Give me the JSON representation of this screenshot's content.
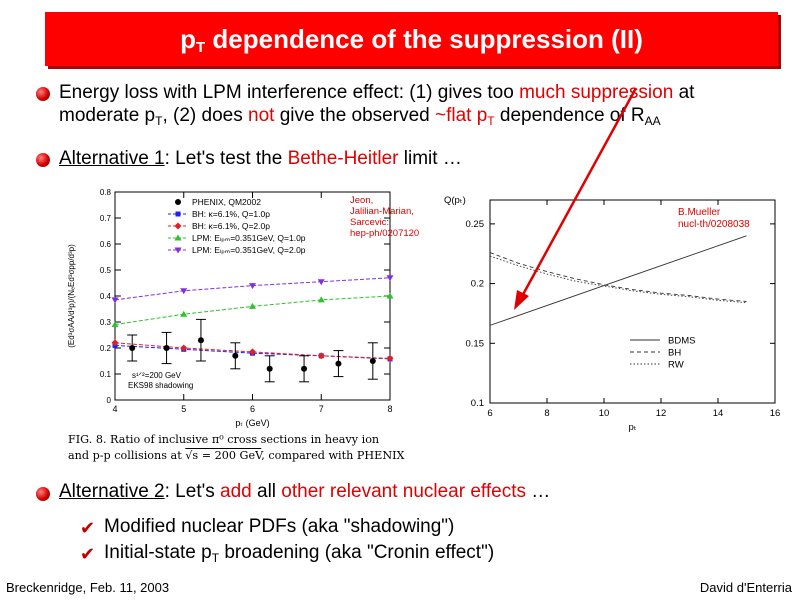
{
  "title": {
    "prefix": "p",
    "sub": "T",
    "rest": " dependence of the suppression (II)"
  },
  "bullet1": {
    "l1_a": "Energy loss with LPM interference effect:  (1) gives too ",
    "l1_red": "much suppression",
    "l1_b": " at",
    "l2_a": "moderate p",
    "l2_sub1": "T",
    "l2_b": ",    (2) does ",
    "l2_red1": "not",
    "l2_c": " give the observed ",
    "l2_red2": "~flat p",
    "l2_sub2": "T",
    "l2_d": " dependence of R",
    "l2_sub3": "AA"
  },
  "bullet2": {
    "u": "Alternative 1",
    "a": ": Let's test the ",
    "red": "Bethe-Heitler",
    "b": " limit …"
  },
  "bullet3": {
    "u": "Alternative 2",
    "a": ": Let's ",
    "red1": "add",
    "b": " all ",
    "red2": "other relevant nuclear effects",
    "c": " …"
  },
  "sub_items": [
    {
      "icon": "check-icon",
      "text": "Modified nuclear PDFs (aka \"shadowing\")"
    },
    {
      "a": "Initial-state p",
      "sub": "T",
      "b": " broadening (aka \"Cronin effect\")"
    }
  ],
  "footer": {
    "left": "Breckenridge, Feb. 11, 2003",
    "right": "David d'Enterria"
  },
  "colors": {
    "title_bg": "#ff0000",
    "accent": "#e00000",
    "bh": "#2020ff",
    "rh": "#e02020",
    "lpm1": "#30c030",
    "lpm2": "#8030e0"
  },
  "arrow": {
    "color": "#e00000"
  },
  "caption": {
    "line1": "FIG. 8.  Ratio of inclusive π⁰ cross sections in heavy ion",
    "line2a": "and p-p collisions at ",
    "line2_sqrt": "√s = 200 GeV",
    "line2b": ", compared with PHENIX"
  },
  "chart_data": [
    {
      "type": "scatter",
      "xlabel": "pₜ (GeV)",
      "ylabel": "(Ed³σAA/d³p)/(NₑEd³σpp/d³p)",
      "xlim": [
        4,
        8
      ],
      "ylim": [
        0,
        0.8
      ],
      "xticks": [
        "4",
        "5",
        "6",
        "7",
        "8"
      ],
      "yticks": [
        "0",
        "0.1",
        "0.2",
        "0.3",
        "0.4",
        "0.5",
        "0.6",
        "0.7",
        "0.8"
      ],
      "annotation": {
        "lines": [
          "Jeon,",
          "Jalilian-Marian,",
          "Sarcevic:",
          "hep-ph/0207120"
        ]
      },
      "energy_label": "s¹ᐟ²=200 GeV",
      "shadowing_label": "EKS98 shadowing",
      "legend": [
        {
          "label": "PHENIX, QM2002",
          "color": "#000000",
          "marker": "star"
        },
        {
          "label": "BH: κ=6.1%, Q=1.0p",
          "color": "#2020ff",
          "marker": "square"
        },
        {
          "label": "BH: κ=6.1%, Q=2.0p",
          "color": "#e02020",
          "marker": "diamond"
        },
        {
          "label": "LPM: Eₗₚₘ=0.351GeV, Q=1.0p",
          "color": "#30c030",
          "marker": "triangle-up"
        },
        {
          "label": "LPM: Eₗₚₘ=0.351GeV, Q=2.0p",
          "color": "#8030e0",
          "marker": "triangle-down"
        }
      ],
      "phenix": {
        "x": [
          4.25,
          4.75,
          5.25,
          5.75,
          6.25,
          6.75,
          7.25,
          7.75
        ],
        "y": [
          0.2,
          0.2,
          0.23,
          0.17,
          0.12,
          0.12,
          0.14,
          0.15
        ],
        "err": [
          0.05,
          0.06,
          0.08,
          0.05,
          0.05,
          0.05,
          0.05,
          0.07
        ]
      },
      "series": [
        {
          "name": "BH: κ=6.1%, Q=1.0p",
          "color": "#2020ff",
          "marker": "square",
          "x": [
            4.0,
            5.0,
            6.0,
            7.0,
            8.0
          ],
          "y": [
            0.21,
            0.195,
            0.18,
            0.17,
            0.158
          ]
        },
        {
          "name": "BH: κ=6.1%, Q=2.0p",
          "color": "#e02020",
          "marker": "diamond",
          "x": [
            4.0,
            5.0,
            6.0,
            7.0,
            8.0
          ],
          "y": [
            0.22,
            0.2,
            0.185,
            0.17,
            0.16
          ]
        },
        {
          "name": "LPM: Eₗₚₘ=0.351GeV, Q=1.0p",
          "color": "#30c030",
          "marker": "triangle-up",
          "x": [
            4.0,
            5.0,
            6.0,
            7.0,
            8.0
          ],
          "y": [
            0.29,
            0.33,
            0.36,
            0.385,
            0.4
          ]
        },
        {
          "name": "LPM: Eₗₚₘ=0.351GeV, Q=2.0p",
          "color": "#8030e0",
          "marker": "triangle-down",
          "x": [
            4.0,
            5.0,
            6.0,
            7.0,
            8.0
          ],
          "y": [
            0.385,
            0.42,
            0.44,
            0.455,
            0.47
          ]
        }
      ]
    },
    {
      "type": "line",
      "xlabel": "pₜ",
      "ylabel": "Q(pₜ)",
      "xlim": [
        6,
        16
      ],
      "ylim": [
        0.1,
        0.27
      ],
      "xticks": [
        "6",
        "8",
        "10",
        "12",
        "14",
        "16"
      ],
      "yticks": [
        "0.1",
        "0.15",
        "0.2",
        "0.25"
      ],
      "annotation": {
        "lines": [
          "B.Mueller",
          "nucl-th/0208038"
        ]
      },
      "legend": [
        {
          "label": "BDMS",
          "dash": "solid"
        },
        {
          "label": "BH",
          "dash": "dashed"
        },
        {
          "label": "RW",
          "dash": "dotted"
        }
      ],
      "series": [
        {
          "name": "BDMS",
          "dash": "solid",
          "x": [
            6.0,
            15.0
          ],
          "y": [
            0.165,
            0.24
          ]
        },
        {
          "name": "BH",
          "dash": "dashed",
          "x": [
            6.0,
            7.0,
            8.0,
            9.0,
            10.0,
            11.0,
            12.0,
            13.0,
            14.0,
            15.0
          ],
          "y": [
            0.226,
            0.217,
            0.21,
            0.204,
            0.199,
            0.195,
            0.192,
            0.19,
            0.187,
            0.185
          ]
        },
        {
          "name": "RW",
          "dash": "dotted",
          "x": [
            6.0,
            7.0,
            8.0,
            9.0,
            10.0,
            11.0,
            12.0,
            13.0,
            14.0,
            15.0
          ],
          "y": [
            0.223,
            0.215,
            0.208,
            0.202,
            0.198,
            0.194,
            0.191,
            0.189,
            0.186,
            0.184
          ]
        }
      ]
    }
  ]
}
